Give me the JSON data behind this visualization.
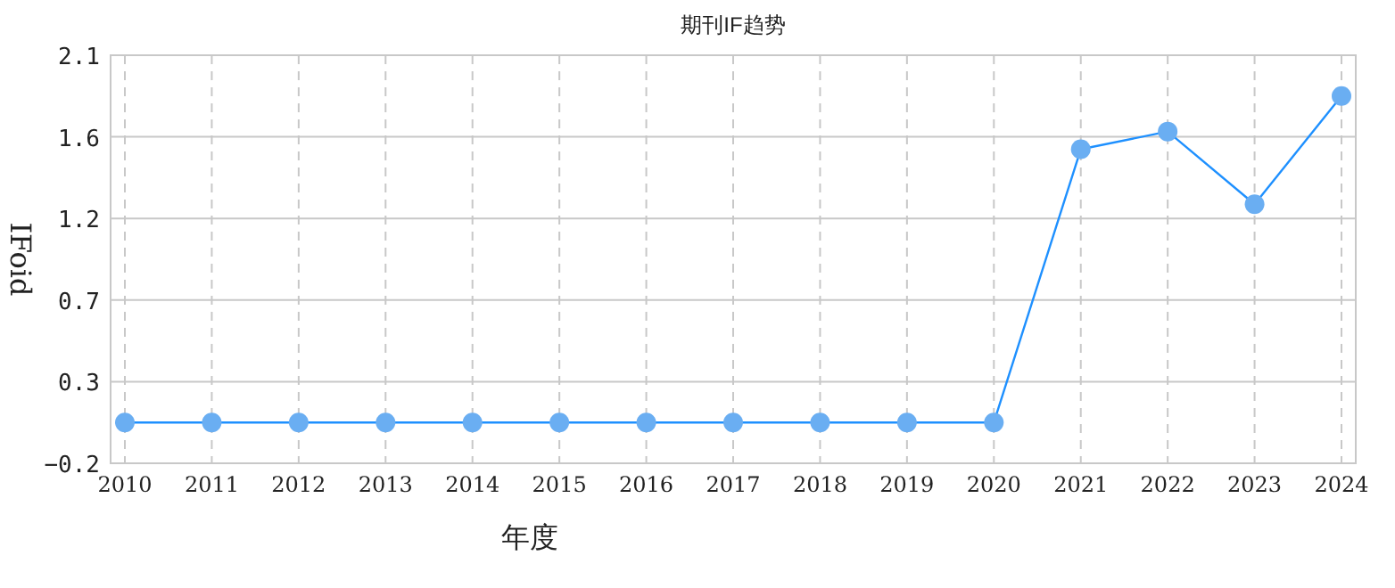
{
  "chart_data": {
    "type": "line",
    "title": "期刊IF趋势",
    "xlabel": "年度",
    "ylabel": "IFoid",
    "categories": [
      "2010",
      "2011",
      "2012",
      "2013",
      "2014",
      "2015",
      "2016",
      "2017",
      "2018",
      "2019",
      "2020",
      "2021",
      "2022",
      "2023",
      "2024"
    ],
    "series": [
      {
        "color": "#1e90ff",
        "values": [
          0.03,
          0.03,
          0.03,
          0.03,
          0.03,
          0.03,
          0.03,
          0.03,
          0.03,
          0.03,
          0.03,
          1.57,
          1.67,
          1.26,
          1.87
        ]
      }
    ],
    "ylim": [
      -0.2,
      2.1
    ],
    "yticks": [
      -0.2,
      {
        "value": 0.26,
        "label": "0.3"
      },
      {
        "value": 0.72,
        "label": "0.7"
      },
      {
        "value": 1.18,
        "label": "1.2"
      },
      {
        "value": 1.64,
        "label": "1.6"
      },
      2.1
    ],
    "grid": true,
    "marker": "circle",
    "line_style": "solid"
  }
}
